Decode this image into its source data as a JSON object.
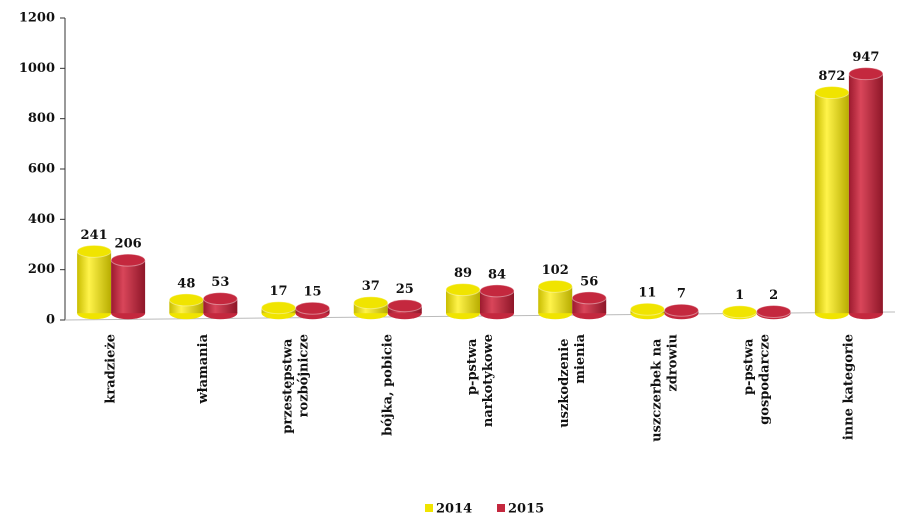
{
  "chart_data": {
    "type": "bar",
    "categories": [
      "kradzieże",
      "włamania",
      "przestępstwa rozbójnicze",
      "bójka, pobicie",
      "p-pstwa narkotykowe",
      "uszkodzenie mienia",
      "uszczerbek na zdrowiu",
      "p-pstwa gospodarcze",
      "inne kategorie"
    ],
    "series": [
      {
        "name": "2014",
        "color": "#f0e400",
        "values": [
          241,
          48,
          17,
          37,
          89,
          102,
          11,
          1,
          872
        ]
      },
      {
        "name": "2015",
        "color": "#c4283e",
        "values": [
          206,
          53,
          15,
          25,
          84,
          56,
          7,
          2,
          947
        ]
      }
    ],
    "ylim": [
      0,
      1200
    ],
    "yticks": [
      0,
      200,
      400,
      600,
      800,
      1000,
      1200
    ],
    "legend": "bottom"
  }
}
